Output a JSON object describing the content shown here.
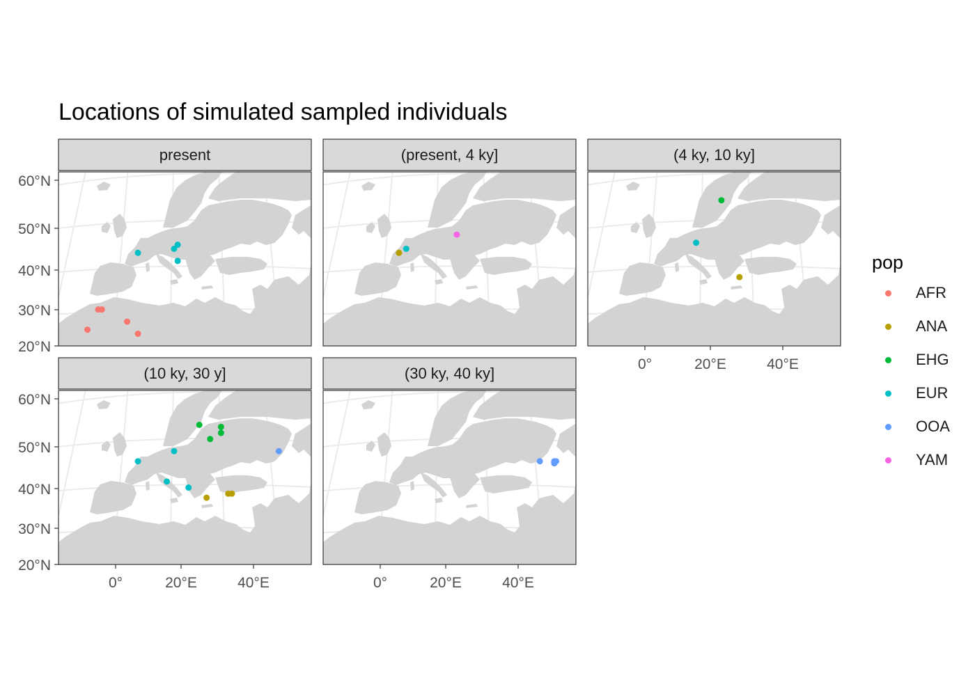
{
  "title": "Locations of simulated sampled individuals",
  "legend": {
    "title": "pop",
    "items": [
      {
        "label": "AFR",
        "color": "#F8766D"
      },
      {
        "label": "ANA",
        "color": "#B79F00"
      },
      {
        "label": "EHG",
        "color": "#00BA38"
      },
      {
        "label": "EUR",
        "color": "#00BFC4"
      },
      {
        "label": "OOA",
        "color": "#619CFF"
      },
      {
        "label": "YAM",
        "color": "#F564E3"
      }
    ]
  },
  "axes": {
    "y_ticks": [
      "60°N",
      "50°N",
      "40°N",
      "30°N",
      "20°N"
    ],
    "x_ticks": [
      "0°",
      "20°E",
      "40°E"
    ]
  },
  "colors": {
    "land": "#d3d3d3",
    "strip": "#d9d9d9",
    "graticule": "#ebebeb"
  },
  "chart_data": {
    "type": "scatter",
    "facet_by": "time window",
    "x_axis": "longitude",
    "y_axis": "latitude",
    "xlim": [
      -15,
      55
    ],
    "ylim": [
      20,
      63
    ],
    "panels": [
      {
        "label": "present",
        "points": [
          {
            "pop": "AFR",
            "lon": -7,
            "lat": 24
          },
          {
            "pop": "AFR",
            "lon": -4,
            "lat": 29
          },
          {
            "pop": "AFR",
            "lon": -3,
            "lat": 29
          },
          {
            "pop": "AFR",
            "lon": 4,
            "lat": 26
          },
          {
            "pop": "AFR",
            "lon": 7,
            "lat": 23
          },
          {
            "pop": "EUR",
            "lon": 7,
            "lat": 43
          },
          {
            "pop": "EUR",
            "lon": 17,
            "lat": 44
          },
          {
            "pop": "EUR",
            "lon": 18,
            "lat": 45
          },
          {
            "pop": "EUR",
            "lon": 18,
            "lat": 41
          }
        ]
      },
      {
        "label": "(present, 4 ky]",
        "points": [
          {
            "pop": "ANA",
            "lon": 6,
            "lat": 43
          },
          {
            "pop": "EUR",
            "lon": 8,
            "lat": 44
          },
          {
            "pop": "YAM",
            "lon": 22,
            "lat": 47.5
          }
        ]
      },
      {
        "label": "(4 ky, 10 ky]",
        "points": [
          {
            "pop": "EHG",
            "lon": 22,
            "lat": 56
          },
          {
            "pop": "EUR",
            "lon": 15,
            "lat": 45.5
          },
          {
            "pop": "ANA",
            "lon": 27,
            "lat": 37
          }
        ]
      },
      {
        "label": "(10 ky, 30 y]",
        "points": [
          {
            "pop": "EHG",
            "lon": 24,
            "lat": 54.5
          },
          {
            "pop": "EHG",
            "lon": 30,
            "lat": 54
          },
          {
            "pop": "EHG",
            "lon": 30,
            "lat": 52.5
          },
          {
            "pop": "EHG",
            "lon": 27,
            "lat": 51
          },
          {
            "pop": "OOA",
            "lon": 46,
            "lat": 48
          },
          {
            "pop": "EUR",
            "lon": 7,
            "lat": 45.5
          },
          {
            "pop": "EUR",
            "lon": 17,
            "lat": 48
          },
          {
            "pop": "EUR",
            "lon": 15,
            "lat": 40.5
          },
          {
            "pop": "EUR",
            "lon": 21,
            "lat": 39
          },
          {
            "pop": "ANA",
            "lon": 26,
            "lat": 36.5
          },
          {
            "pop": "ANA",
            "lon": 32,
            "lat": 37.5
          },
          {
            "pop": "ANA",
            "lon": 33,
            "lat": 37.5
          }
        ]
      },
      {
        "label": "(30 ky, 40 ky]",
        "points": [
          {
            "pop": "OOA",
            "lon": 45,
            "lat": 45.5
          },
          {
            "pop": "OOA",
            "lon": 49,
            "lat": 45.5
          },
          {
            "pop": "OOA",
            "lon": 49.5,
            "lat": 45.5
          },
          {
            "pop": "OOA",
            "lon": 49,
            "lat": 45
          }
        ]
      }
    ]
  }
}
